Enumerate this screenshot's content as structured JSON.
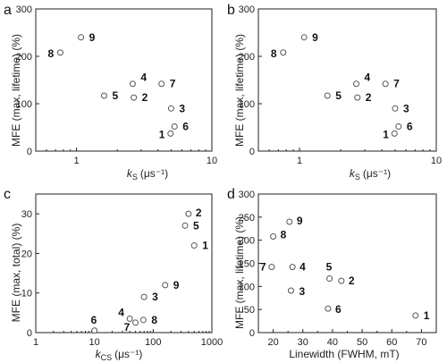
{
  "chart_data": [
    {
      "panel": "a",
      "type": "scatter",
      "x_scale": "log",
      "xlim": [
        0.5,
        10
      ],
      "ylim": [
        0,
        300
      ],
      "xticks": [
        1,
        10
      ],
      "yticks": [
        0,
        100,
        200,
        300
      ],
      "xlabel_main": "k",
      "xlabel_sub": "S",
      "xlabel_unit": "(μs⁻¹)",
      "ylabel": "MFE (max, lifetime) (%)",
      "points": [
        {
          "label": "1",
          "x": 4.95,
          "y": 37
        },
        {
          "label": "2",
          "x": 2.65,
          "y": 113
        },
        {
          "label": "3",
          "x": 5.0,
          "y": 90
        },
        {
          "label": "4",
          "x": 2.6,
          "y": 142
        },
        {
          "label": "5",
          "x": 1.6,
          "y": 117
        },
        {
          "label": "6",
          "x": 5.3,
          "y": 52
        },
        {
          "label": "7",
          "x": 4.25,
          "y": 142
        },
        {
          "label": "8",
          "x": 0.76,
          "y": 208
        },
        {
          "label": "9",
          "x": 1.08,
          "y": 240
        }
      ]
    },
    {
      "panel": "b",
      "type": "scatter",
      "x_scale": "log",
      "xlim": [
        0.5,
        10
      ],
      "ylim": [
        0,
        300
      ],
      "xticks": [
        1,
        10
      ],
      "yticks": [
        0,
        100,
        200,
        300
      ],
      "xlabel_main": "k",
      "xlabel_sub": "S",
      "xlabel_unit": "(μs⁻¹)",
      "ylabel": "MFE (max, lifetime) (%)",
      "points": [
        {
          "label": "1",
          "x": 4.95,
          "y": 37
        },
        {
          "label": "2",
          "x": 2.65,
          "y": 113
        },
        {
          "label": "3",
          "x": 5.0,
          "y": 90
        },
        {
          "label": "4",
          "x": 2.6,
          "y": 142
        },
        {
          "label": "5",
          "x": 1.6,
          "y": 117
        },
        {
          "label": "6",
          "x": 5.3,
          "y": 52
        },
        {
          "label": "7",
          "x": 4.25,
          "y": 142
        },
        {
          "label": "8",
          "x": 0.76,
          "y": 208
        },
        {
          "label": "9",
          "x": 1.08,
          "y": 240
        }
      ]
    },
    {
      "panel": "c",
      "type": "scatter",
      "x_scale": "log",
      "xlim": [
        1,
        1000
      ],
      "ylim": [
        0,
        35
      ],
      "xticks": [
        1,
        10,
        100,
        1000
      ],
      "yticks": [
        0,
        10,
        20,
        30
      ],
      "xlabel_main": "k",
      "xlabel_sub": "CS",
      "xlabel_unit": "(μs⁻¹)",
      "ylabel": "MFE (max, total) (%)",
      "points": [
        {
          "label": "1",
          "x": 500,
          "y": 22
        },
        {
          "label": "2",
          "x": 400,
          "y": 30
        },
        {
          "label": "3",
          "x": 70,
          "y": 9
        },
        {
          "label": "4",
          "x": 40,
          "y": 3.5
        },
        {
          "label": "5",
          "x": 350,
          "y": 27
        },
        {
          "label": "6",
          "x": 10,
          "y": 0.5
        },
        {
          "label": "7",
          "x": 50,
          "y": 2.5
        },
        {
          "label": "8",
          "x": 68,
          "y": 3.2
        },
        {
          "label": "9",
          "x": 160,
          "y": 12
        }
      ]
    },
    {
      "panel": "d",
      "type": "scatter",
      "x_scale": "linear",
      "xlim": [
        15,
        75
      ],
      "ylim": [
        0,
        300
      ],
      "xticks": [
        20,
        30,
        40,
        50,
        60,
        70
      ],
      "yticks": [
        0,
        50,
        100,
        150,
        200,
        250,
        300
      ],
      "xlabel": "Linewidth (FWHM, mT)",
      "ylabel": "MFE (max, lifetime) (%)",
      "points": [
        {
          "label": "1",
          "x": 68,
          "y": 37
        },
        {
          "label": "2",
          "x": 43,
          "y": 112
        },
        {
          "label": "3",
          "x": 26,
          "y": 91
        },
        {
          "label": "4",
          "x": 26.5,
          "y": 142
        },
        {
          "label": "5",
          "x": 39,
          "y": 117
        },
        {
          "label": "6",
          "x": 38.5,
          "y": 52
        },
        {
          "label": "7",
          "x": 19.5,
          "y": 142
        },
        {
          "label": "8",
          "x": 20,
          "y": 208
        },
        {
          "label": "9",
          "x": 25.5,
          "y": 240
        }
      ]
    }
  ]
}
